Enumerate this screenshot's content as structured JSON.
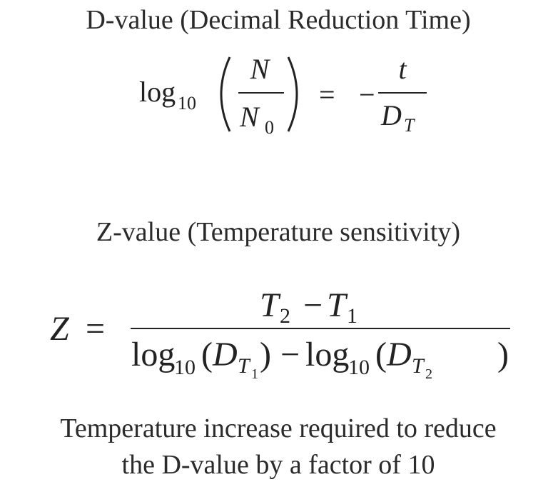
{
  "d_value": {
    "heading": "D-value (Decimal Reduction Time)",
    "formula": {
      "log": "log",
      "base": "10",
      "numerator": "N",
      "denominator": "N",
      "denominator_sub": "0",
      "equals": "=",
      "minus": "−",
      "rhs_numerator": "t",
      "rhs_denominator": "D",
      "rhs_denominator_sub": "T"
    }
  },
  "z_value": {
    "heading": "Z-value (Temperature sensitivity)",
    "formula": {
      "lhs": "Z",
      "equals": "=",
      "numerator": [
        "T",
        "2",
        "−",
        "T",
        "1"
      ],
      "denominator": [
        "log",
        "10",
        "(",
        "D",
        "T",
        "1",
        ")",
        "−",
        "log",
        "10",
        "(",
        "D",
        "T",
        "2",
        ")"
      ]
    }
  },
  "caption": [
    "Temperature increase required to reduce",
    "the D-value by a factor of 10"
  ]
}
